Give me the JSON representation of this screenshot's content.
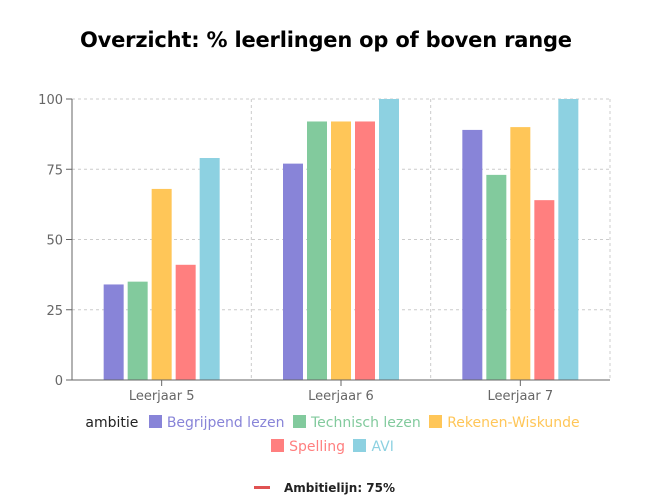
{
  "title": "Overzicht: % leerlingen op of boven range",
  "legend": {
    "title": "ambitie",
    "items": [
      {
        "label": "Begrijpend lezen",
        "color": "#8884d8"
      },
      {
        "label": "Technisch lezen",
        "color": "#82ca9d"
      },
      {
        "label": "Rekenen-Wiskunde",
        "color": "#ffc658"
      },
      {
        "label": "Spelling",
        "color": "#ff7f7f"
      },
      {
        "label": "AVI",
        "color": "#8dd1e1"
      }
    ]
  },
  "reference": {
    "label": "Ambitielijn: 75%",
    "color": "#e05252"
  },
  "chart_data": {
    "type": "bar",
    "title": "Overzicht: % leerlingen op of boven range",
    "categories": [
      "Leerjaar 5",
      "Leerjaar 6",
      "Leerjaar 7"
    ],
    "series": [
      {
        "name": "Begrijpend lezen",
        "values": [
          34,
          77,
          89
        ],
        "color": "#8884d8"
      },
      {
        "name": "Technisch lezen",
        "values": [
          35,
          92,
          73
        ],
        "color": "#82ca9d"
      },
      {
        "name": "Rekenen-Wiskunde",
        "values": [
          68,
          92,
          90
        ],
        "color": "#ffc658"
      },
      {
        "name": "Spelling",
        "values": [
          41,
          92,
          64
        ],
        "color": "#ff7f7f"
      },
      {
        "name": "AVI",
        "values": [
          79,
          100,
          100
        ],
        "color": "#8dd1e1"
      }
    ],
    "ylim": [
      0,
      100
    ],
    "yticks": [
      0,
      25,
      50,
      75,
      100
    ],
    "grid": true,
    "legend_position": "bottom",
    "xlabel": "",
    "ylabel": ""
  }
}
